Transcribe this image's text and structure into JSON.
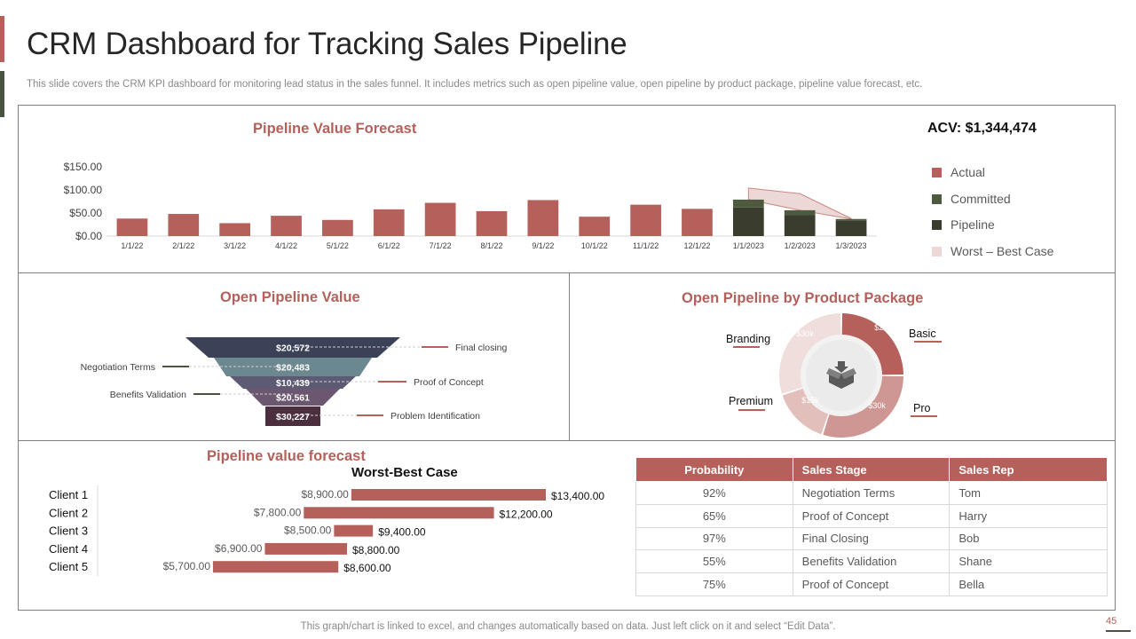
{
  "page": {
    "title": "CRM Dashboard for Tracking Sales Pipeline",
    "subtitle": "This slide covers the CRM KPI dashboard for monitoring lead status in the sales funnel. It includes metrics such as open pipeline value, open pipeline by product package, pipeline value forecast, etc.",
    "footer": "This graph/chart is linked to excel,  and changes automatically based on data. Just left click on it and select “Edit Data”.",
    "page_number": "45"
  },
  "colors": {
    "accent": "#b5605a",
    "dark_green": "#4a5240",
    "committed": "#4e5a3f",
    "pipeline": "#3a3d2e",
    "worst_best": "#ecd8d6",
    "funnel": [
      "#3b4257",
      "#6b8790",
      "#5c5b73",
      "#6b5770",
      "#4b2f3f"
    ]
  },
  "forecast": {
    "title": "Pipeline Value Forecast",
    "acv": "ACV: $1,344,474",
    "legend": [
      "Actual",
      "Committed",
      "Pipeline",
      "Worst – Best Case"
    ]
  },
  "open_pipeline": {
    "title": "Open Pipeline Value",
    "labels_right": [
      "Final closing",
      "Proof of Concept",
      "Problem Identification"
    ],
    "labels_left": [
      "Negotiation Terms",
      "Benefits Validation"
    ]
  },
  "product_package": {
    "title": "Open Pipeline by Product Package",
    "labels": [
      "Branding",
      "Basic",
      "Premium",
      "Pro"
    ]
  },
  "client_forecast": {
    "title": "Pipeline value forecast",
    "subtitle": "Worst-Best Case"
  },
  "table": {
    "headers": [
      "Probability",
      "Sales Stage",
      "Sales Rep"
    ],
    "rows": [
      [
        "92%",
        "Negotiation Terms",
        "Tom"
      ],
      [
        "65%",
        "Proof of Concept",
        "Harry"
      ],
      [
        "97%",
        "Final Closing",
        "Bob"
      ],
      [
        "55%",
        "Benefits Validation",
        "Shane"
      ],
      [
        "75%",
        "Proof of Concept",
        "Bella"
      ]
    ]
  },
  "chart_data": [
    {
      "type": "bar",
      "name": "pipeline-value-forecast",
      "title": "Pipeline Value Forecast",
      "categories": [
        "1/1/22",
        "2/1/22",
        "3/1/22",
        "4/1/22",
        "5/1/22",
        "6/1/22",
        "7/1/22",
        "8/1/22",
        "9/1/22",
        "10/1/22",
        "11/1/22",
        "12/1/22",
        "1/1/2023",
        "1/2/2023",
        "1/3/2023"
      ],
      "yticks": [
        "$0.00",
        "$50.00",
        "$100.00",
        "$150.00"
      ],
      "ylim": [
        0,
        150
      ],
      "series": [
        {
          "name": "Actual",
          "values": [
            38,
            48,
            28,
            44,
            35,
            58,
            72,
            54,
            78,
            42,
            68,
            59,
            0,
            0,
            0
          ]
        },
        {
          "name": "Committed",
          "values": [
            0,
            0,
            0,
            0,
            0,
            0,
            0,
            0,
            0,
            0,
            0,
            0,
            17,
            10,
            3
          ]
        },
        {
          "name": "Pipeline",
          "values": [
            0,
            0,
            0,
            0,
            0,
            0,
            0,
            0,
            0,
            0,
            0,
            0,
            62,
            46,
            34
          ]
        },
        {
          "name": "Worst – Best Case",
          "values": [
            0,
            0,
            0,
            0,
            0,
            0,
            0,
            0,
            0,
            0,
            0,
            0,
            104,
            92,
            38
          ]
        }
      ]
    },
    {
      "type": "bar",
      "name": "open-pipeline-value-funnel",
      "title": "Open Pipeline Value",
      "categories": [
        "Final closing",
        "Negotiation Terms",
        "Proof of Concept",
        "Benefits Validation",
        "Problem Identification"
      ],
      "value_labels": [
        "$20,572",
        "$20,483",
        "$10,439",
        "$20,561",
        "$30,227"
      ],
      "values": [
        20572,
        20483,
        10439,
        20561,
        30227
      ]
    },
    {
      "type": "pie",
      "name": "open-pipeline-by-product-package",
      "title": "Open Pipeline by Product Package",
      "categories": [
        "Basic",
        "Pro",
        "Premium",
        "Branding"
      ],
      "value_labels": [
        "$25k",
        "$30k",
        "$15k",
        "$30k"
      ],
      "values": [
        25,
        30,
        15,
        30
      ]
    },
    {
      "type": "bar",
      "name": "client-worst-best-case",
      "title": "Pipeline value forecast",
      "subtitle": "Worst-Best Case",
      "categories": [
        "Client 1",
        "Client 2",
        "Client 3",
        "Client 4",
        "Client 5"
      ],
      "worst": [
        8900,
        7800,
        8500,
        6900,
        5700
      ],
      "best": [
        13400,
        12200,
        9400,
        8800,
        8600
      ],
      "worst_labels": [
        "$8,900.00",
        "$7,800.00",
        "$8,500.00",
        "$6,900.00",
        "$5,700.00"
      ],
      "best_labels": [
        "$13,400.00",
        "$12,200.00",
        "$9,400.00",
        "$8,800.00",
        "$8,600.00"
      ]
    }
  ]
}
